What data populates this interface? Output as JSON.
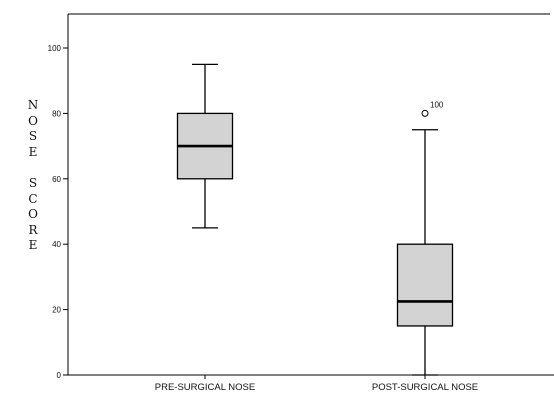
{
  "chart_data": {
    "type": "box",
    "title": "",
    "xlabel": "",
    "ylabel": "NOSE SCORE",
    "ylim": [
      0,
      110
    ],
    "yticks": [
      0,
      20,
      40,
      60,
      80,
      100
    ],
    "grid": false,
    "legend": "none",
    "categories": [
      "PRE-SURGICAL NOSE",
      "POST-SURGICAL NOSE"
    ],
    "boxes": [
      {
        "category": "PRE-SURGICAL NOSE",
        "whisker_low": 45,
        "q1": 60,
        "median": 70,
        "q3": 80,
        "whisker_high": 95,
        "outliers": []
      },
      {
        "category": "POST-SURGICAL NOSE",
        "whisker_low": 0,
        "q1": 15,
        "median": 22.5,
        "q3": 40,
        "whisker_high": 75,
        "outliers": [
          {
            "value": 80,
            "label": "100"
          }
        ]
      }
    ],
    "colors": {
      "box_fill": "#d3d3d3",
      "stroke": "#000000"
    }
  }
}
